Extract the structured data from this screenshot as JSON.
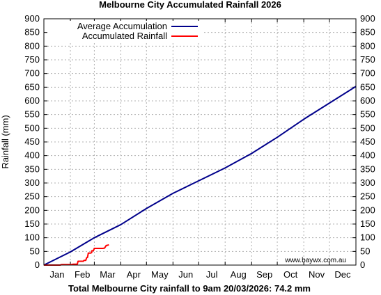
{
  "chart_data": {
    "type": "line",
    "title": "Melbourne City Accumulated Rainfall 2026",
    "ylabel": "Rainfall (mm)",
    "xlabel": "Total Melbourne City rainfall to 9am 20/03/2026: 74.2 mm",
    "ylim": [
      0,
      900
    ],
    "yticks": [
      "0",
      "50",
      "100",
      "150",
      "200",
      "250",
      "300",
      "350",
      "400",
      "450",
      "500",
      "550",
      "600",
      "650",
      "700",
      "750",
      "800",
      "850",
      "900"
    ],
    "categories": [
      "Jan",
      "Feb",
      "Mar",
      "Apr",
      "May",
      "Jun",
      "Jul",
      "Aug",
      "Sep",
      "Oct",
      "Nov",
      "Dec"
    ],
    "grid": true,
    "legend_position": "top-left",
    "x_unit": "day of year",
    "xlim": [
      1,
      366
    ],
    "series": [
      {
        "name": "Average Accumulation",
        "color": "#00008b",
        "points": [
          [
            1,
            0
          ],
          [
            32,
            48
          ],
          [
            60,
            100
          ],
          [
            91,
            148
          ],
          [
            121,
            207
          ],
          [
            152,
            262
          ],
          [
            182,
            308
          ],
          [
            213,
            355
          ],
          [
            244,
            408
          ],
          [
            274,
            467
          ],
          [
            305,
            533
          ],
          [
            335,
            592
          ],
          [
            366,
            653
          ]
        ]
      },
      {
        "name": "Accumulated Rainfall",
        "color": "#ff0000",
        "points": [
          [
            1,
            0
          ],
          [
            20,
            0
          ],
          [
            22,
            2
          ],
          [
            33,
            2
          ],
          [
            35,
            3
          ],
          [
            40,
            3
          ],
          [
            41,
            14
          ],
          [
            47,
            14
          ],
          [
            48,
            17
          ],
          [
            50,
            17
          ],
          [
            51,
            27
          ],
          [
            52,
            28
          ],
          [
            53,
            44
          ],
          [
            56,
            44
          ],
          [
            57,
            46
          ],
          [
            57,
            52
          ],
          [
            59,
            53
          ],
          [
            60,
            61
          ],
          [
            64,
            61
          ],
          [
            70,
            61
          ],
          [
            72,
            62
          ],
          [
            73,
            67
          ],
          [
            74,
            72
          ],
          [
            75,
            72
          ],
          [
            77,
            74.2
          ]
        ]
      }
    ],
    "annotation": "www.baywx.com.au"
  }
}
